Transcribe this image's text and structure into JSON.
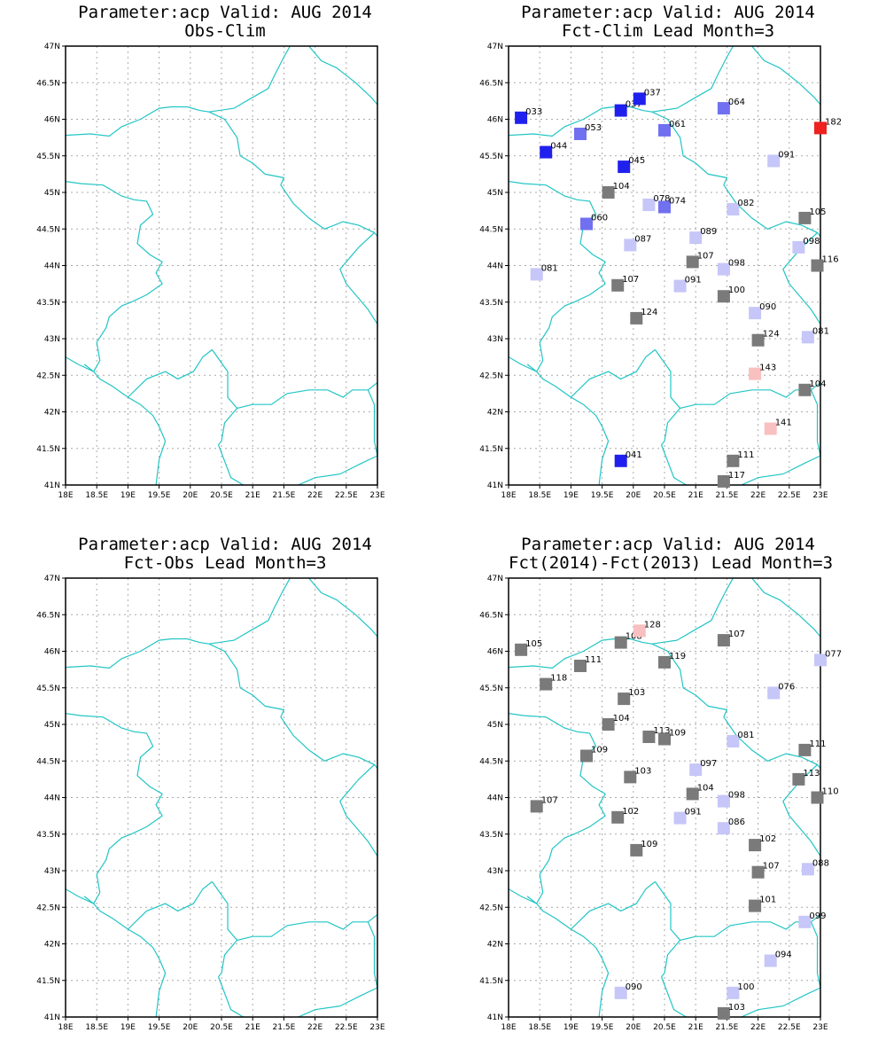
{
  "colors": {
    "border": "#22c5c5",
    "grid": "#aaaaaa",
    "dark_blue": "#2020ee",
    "mid_blue": "#7070f0",
    "light_blue": "#c6c6f8",
    "gray": "#7a7a7a",
    "light_red": "#f8c0c0",
    "red": "#ee2020"
  },
  "axes": {
    "x_ticks": [
      "18E",
      "18.5E",
      "19E",
      "19.5E",
      "20E",
      "20.5E",
      "21E",
      "21.5E",
      "22E",
      "22.5E",
      "23E"
    ],
    "y_ticks": [
      "41N",
      "41.5N",
      "42N",
      "42.5N",
      "43N",
      "43.5N",
      "44N",
      "44.5N",
      "45N",
      "45.5N",
      "46N",
      "46.5N",
      "47N"
    ],
    "lon_range": [
      18,
      23
    ],
    "lat_range": [
      41,
      47
    ]
  },
  "panels": [
    {
      "id": "obs-clim",
      "title_line1": "Parameter:acp Valid: AUG 2014",
      "title_line2": "Obs-Clim",
      "stations": []
    },
    {
      "id": "fct-clim",
      "title_line1": "Parameter:acp Valid: AUG 2014",
      "title_line2": "Fct-Clim Lead Month=3",
      "stations": [
        {
          "lon": 18.2,
          "lat": 46.02,
          "label": "033",
          "color": "dark_blue"
        },
        {
          "lon": 19.8,
          "lat": 46.12,
          "label": "037",
          "color": "dark_blue"
        },
        {
          "lon": 20.1,
          "lat": 46.28,
          "label": "037",
          "color": "dark_blue"
        },
        {
          "lon": 21.45,
          "lat": 46.15,
          "label": "064",
          "color": "mid_blue"
        },
        {
          "lon": 23.0,
          "lat": 45.88,
          "label": "182",
          "color": "red"
        },
        {
          "lon": 19.15,
          "lat": 45.8,
          "label": "053",
          "color": "mid_blue"
        },
        {
          "lon": 20.5,
          "lat": 45.85,
          "label": "061",
          "color": "mid_blue"
        },
        {
          "lon": 18.6,
          "lat": 45.55,
          "label": "044",
          "color": "dark_blue"
        },
        {
          "lon": 19.85,
          "lat": 45.35,
          "label": "045",
          "color": "dark_blue"
        },
        {
          "lon": 22.25,
          "lat": 45.43,
          "label": "091",
          "color": "light_blue"
        },
        {
          "lon": 19.6,
          "lat": 45.0,
          "label": "104",
          "color": "gray"
        },
        {
          "lon": 20.25,
          "lat": 44.83,
          "label": "078",
          "color": "light_blue"
        },
        {
          "lon": 20.5,
          "lat": 44.8,
          "label": "074",
          "color": "mid_blue"
        },
        {
          "lon": 21.6,
          "lat": 44.77,
          "label": "082",
          "color": "light_blue"
        },
        {
          "lon": 22.75,
          "lat": 44.65,
          "label": "105",
          "color": "gray"
        },
        {
          "lon": 19.25,
          "lat": 44.57,
          "label": "060",
          "color": "mid_blue"
        },
        {
          "lon": 19.95,
          "lat": 44.28,
          "label": "087",
          "color": "light_blue"
        },
        {
          "lon": 21.0,
          "lat": 44.38,
          "label": "089",
          "color": "light_blue"
        },
        {
          "lon": 22.65,
          "lat": 44.25,
          "label": "098",
          "color": "light_blue"
        },
        {
          "lon": 20.95,
          "lat": 44.05,
          "label": "107",
          "color": "gray"
        },
        {
          "lon": 21.45,
          "lat": 43.95,
          "label": "098",
          "color": "light_blue"
        },
        {
          "lon": 22.95,
          "lat": 44.0,
          "label": "116",
          "color": "gray"
        },
        {
          "lon": 18.45,
          "lat": 43.88,
          "label": "081",
          "color": "light_blue"
        },
        {
          "lon": 19.75,
          "lat": 43.73,
          "label": "107",
          "color": "gray"
        },
        {
          "lon": 20.75,
          "lat": 43.72,
          "label": "091",
          "color": "light_blue"
        },
        {
          "lon": 21.45,
          "lat": 43.58,
          "label": "100",
          "color": "gray"
        },
        {
          "lon": 21.95,
          "lat": 43.35,
          "label": "090",
          "color": "light_blue"
        },
        {
          "lon": 20.05,
          "lat": 43.28,
          "label": "124",
          "color": "gray"
        },
        {
          "lon": 22.0,
          "lat": 42.98,
          "label": "124",
          "color": "gray"
        },
        {
          "lon": 22.8,
          "lat": 43.02,
          "label": "081",
          "color": "light_blue"
        },
        {
          "lon": 21.95,
          "lat": 42.52,
          "label": "143",
          "color": "light_red"
        },
        {
          "lon": 22.75,
          "lat": 42.3,
          "label": "104",
          "color": "gray"
        },
        {
          "lon": 22.2,
          "lat": 41.77,
          "label": "141",
          "color": "light_red"
        },
        {
          "lon": 19.8,
          "lat": 41.33,
          "label": "041",
          "color": "dark_blue"
        },
        {
          "lon": 21.6,
          "lat": 41.33,
          "label": "111",
          "color": "gray"
        },
        {
          "lon": 21.45,
          "lat": 41.05,
          "label": "117",
          "color": "gray"
        }
      ]
    },
    {
      "id": "fct-obs",
      "title_line1": "Parameter:acp Valid: AUG 2014",
      "title_line2": "Fct-Obs Lead Month=3",
      "stations": []
    },
    {
      "id": "fct-fct",
      "title_line1": "Parameter:acp Valid: AUG 2014",
      "title_line2": "Fct(2014)-Fct(2013) Lead Month=3",
      "stations": [
        {
          "lon": 18.2,
          "lat": 46.02,
          "label": "105",
          "color": "gray"
        },
        {
          "lon": 19.8,
          "lat": 46.12,
          "label": "108",
          "color": "gray"
        },
        {
          "lon": 20.1,
          "lat": 46.28,
          "label": "128",
          "color": "light_red"
        },
        {
          "lon": 21.45,
          "lat": 46.15,
          "label": "107",
          "color": "gray"
        },
        {
          "lon": 23.0,
          "lat": 45.88,
          "label": "077",
          "color": "light_blue"
        },
        {
          "lon": 19.15,
          "lat": 45.8,
          "label": "111",
          "color": "gray"
        },
        {
          "lon": 20.5,
          "lat": 45.85,
          "label": "119",
          "color": "gray"
        },
        {
          "lon": 18.6,
          "lat": 45.55,
          "label": "118",
          "color": "gray"
        },
        {
          "lon": 19.85,
          "lat": 45.35,
          "label": "103",
          "color": "gray"
        },
        {
          "lon": 22.25,
          "lat": 45.43,
          "label": "076",
          "color": "light_blue"
        },
        {
          "lon": 19.6,
          "lat": 45.0,
          "label": "104",
          "color": "gray"
        },
        {
          "lon": 20.25,
          "lat": 44.83,
          "label": "113",
          "color": "gray"
        },
        {
          "lon": 20.5,
          "lat": 44.8,
          "label": "109",
          "color": "gray"
        },
        {
          "lon": 21.6,
          "lat": 44.77,
          "label": "081",
          "color": "light_blue"
        },
        {
          "lon": 22.75,
          "lat": 44.65,
          "label": "111",
          "color": "gray"
        },
        {
          "lon": 19.25,
          "lat": 44.57,
          "label": "109",
          "color": "gray"
        },
        {
          "lon": 19.95,
          "lat": 44.28,
          "label": "103",
          "color": "gray"
        },
        {
          "lon": 21.0,
          "lat": 44.38,
          "label": "097",
          "color": "light_blue"
        },
        {
          "lon": 22.65,
          "lat": 44.25,
          "label": "113",
          "color": "gray"
        },
        {
          "lon": 20.95,
          "lat": 44.05,
          "label": "104",
          "color": "gray"
        },
        {
          "lon": 21.45,
          "lat": 43.95,
          "label": "098",
          "color": "light_blue"
        },
        {
          "lon": 22.95,
          "lat": 44.0,
          "label": "110",
          "color": "gray"
        },
        {
          "lon": 18.45,
          "lat": 43.88,
          "label": "107",
          "color": "gray"
        },
        {
          "lon": 19.75,
          "lat": 43.73,
          "label": "102",
          "color": "gray"
        },
        {
          "lon": 20.75,
          "lat": 43.72,
          "label": "091",
          "color": "light_blue"
        },
        {
          "lon": 21.45,
          "lat": 43.58,
          "label": "086",
          "color": "light_blue"
        },
        {
          "lon": 21.95,
          "lat": 43.35,
          "label": "102",
          "color": "gray"
        },
        {
          "lon": 20.05,
          "lat": 43.28,
          "label": "109",
          "color": "gray"
        },
        {
          "lon": 22.0,
          "lat": 42.98,
          "label": "107",
          "color": "gray"
        },
        {
          "lon": 22.8,
          "lat": 43.02,
          "label": "088",
          "color": "light_blue"
        },
        {
          "lon": 21.95,
          "lat": 42.52,
          "label": "101",
          "color": "gray"
        },
        {
          "lon": 22.75,
          "lat": 42.3,
          "label": "099",
          "color": "light_blue"
        },
        {
          "lon": 22.2,
          "lat": 41.77,
          "label": "094",
          "color": "light_blue"
        },
        {
          "lon": 19.8,
          "lat": 41.33,
          "label": "090",
          "color": "light_blue"
        },
        {
          "lon": 21.6,
          "lat": 41.33,
          "label": "100",
          "color": "light_blue"
        },
        {
          "lon": 21.45,
          "lat": 41.05,
          "label": "103",
          "color": "gray"
        }
      ]
    }
  ]
}
